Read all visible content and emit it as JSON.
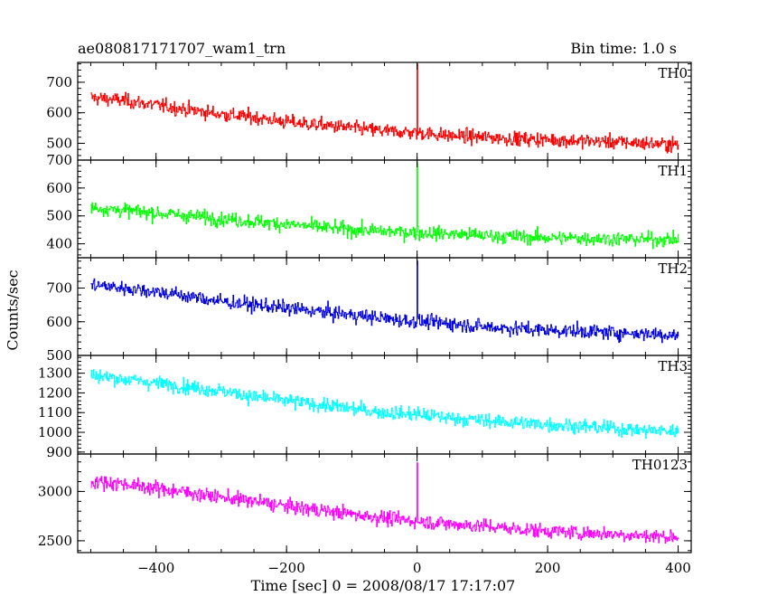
{
  "header": {
    "title": "ae080817171707_wam1_trn",
    "bin_time": "Bin time: 1.0 s"
  },
  "chart_data": {
    "type": "line",
    "xlabel": "Time [sec] 0 = 2008/08/17 17:17:07",
    "ylabel": "Counts/sec",
    "xlim": [
      -520,
      420
    ],
    "xticks": [
      -400,
      -200,
      0,
      200,
      400
    ],
    "xtick_labels": [
      "−400",
      "−200",
      "0",
      "200",
      "400"
    ],
    "burst_time": 0,
    "panels": [
      {
        "name": "TH0",
        "color": "#ff0000",
        "ylim": [
          445,
          765
        ],
        "yticks": [
          500,
          600,
          700
        ],
        "ytick_labels": [
          "500",
          "600",
          "700"
        ],
        "x": [
          -500,
          -450,
          -400,
          -350,
          -300,
          -250,
          -200,
          -150,
          -100,
          -50,
          0,
          50,
          100,
          150,
          200,
          250,
          300,
          350,
          400
        ],
        "y": [
          650,
          640,
          625,
          610,
          595,
          585,
          570,
          560,
          550,
          540,
          535,
          525,
          520,
          515,
          512,
          508,
          505,
          500,
          495
        ],
        "peak": 760
      },
      {
        "name": "TH1",
        "color": "#00ff00",
        "ylim": [
          350,
          700
        ],
        "yticks": [
          400,
          500,
          600,
          700
        ],
        "ytick_labels": [
          "400",
          "500",
          "600",
          "700"
        ],
        "x": [
          -500,
          -450,
          -400,
          -350,
          -300,
          -250,
          -200,
          -150,
          -100,
          -50,
          0,
          50,
          100,
          150,
          200,
          250,
          300,
          350,
          400
        ],
        "y": [
          530,
          520,
          510,
          500,
          490,
          480,
          470,
          460,
          450,
          445,
          440,
          435,
          430,
          425,
          422,
          420,
          418,
          416,
          415
        ],
        "peak": 690
      },
      {
        "name": "TH2",
        "color": "#0000e0",
        "ylim": [
          500,
          790
        ],
        "yticks": [
          500,
          600,
          700
        ],
        "ytick_labels": [
          "500",
          "600",
          "700"
        ],
        "x": [
          -500,
          -450,
          -400,
          -350,
          -300,
          -250,
          -200,
          -150,
          -100,
          -50,
          0,
          50,
          100,
          150,
          200,
          250,
          300,
          350,
          400
        ],
        "y": [
          710,
          700,
          690,
          675,
          660,
          650,
          640,
          630,
          620,
          610,
          600,
          595,
          585,
          580,
          575,
          572,
          568,
          565,
          560
        ],
        "peak": 780
      },
      {
        "name": "TH3",
        "color": "#00ffff",
        "ylim": [
          890,
          1390
        ],
        "yticks": [
          900,
          1000,
          1100,
          1200,
          1300
        ],
        "ytick_labels": [
          "900",
          "1000",
          "1100",
          "1200",
          "1300"
        ],
        "x": [
          -500,
          -450,
          -400,
          -350,
          -300,
          -250,
          -200,
          -150,
          -100,
          -50,
          0,
          50,
          100,
          150,
          200,
          250,
          300,
          350,
          400
        ],
        "y": [
          1290,
          1270,
          1250,
          1230,
          1210,
          1180,
          1160,
          1140,
          1120,
          1100,
          1090,
          1075,
          1060,
          1050,
          1040,
          1030,
          1020,
          1010,
          1005
        ],
        "peak": 1100
      },
      {
        "name": "TH0123",
        "color": "#ff00ff",
        "ylim": [
          2380,
          3380
        ],
        "yticks": [
          2500,
          3000
        ],
        "ytick_labels": [
          "2500",
          "3000"
        ],
        "x": [
          -500,
          -450,
          -400,
          -350,
          -300,
          -250,
          -200,
          -150,
          -100,
          -50,
          0,
          50,
          100,
          150,
          200,
          250,
          300,
          350,
          400
        ],
        "y": [
          3100,
          3080,
          3030,
          2990,
          2940,
          2900,
          2850,
          2810,
          2770,
          2730,
          2700,
          2670,
          2650,
          2620,
          2600,
          2580,
          2570,
          2550,
          2540
        ],
        "peak": 3290
      }
    ]
  }
}
